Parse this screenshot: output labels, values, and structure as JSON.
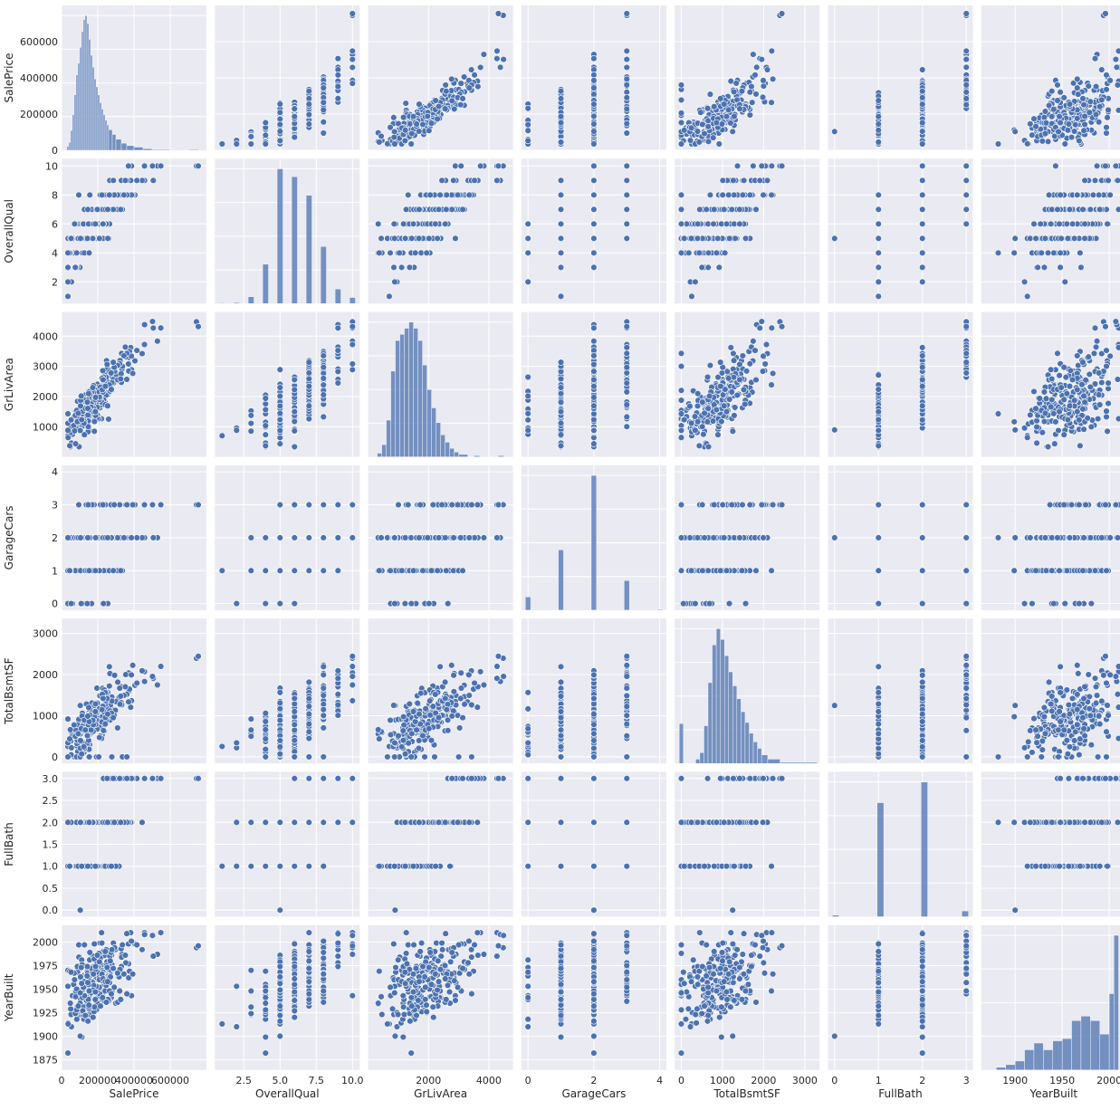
{
  "chart_data": {
    "type": "scatter",
    "kind": "pairplot",
    "background_color": "#eaeaf2",
    "grid_color": "#ffffff",
    "marker_color": "#4c72b0",
    "grid": true,
    "variables": [
      "SalePrice",
      "OverallQual",
      "GrLivArea",
      "GarageCars",
      "TotalBsmtSF",
      "FullBath",
      "YearBuilt"
    ],
    "axes": {
      "SalePrice": {
        "range": [
          0,
          800000
        ],
        "ticks": [
          0,
          200000,
          400000,
          600000
        ],
        "tick_labels": [
          "0",
          "200000",
          "400000",
          "600000"
        ]
      },
      "OverallQual": {
        "range": [
          0.5,
          10.5
        ],
        "ticks": [
          2,
          4,
          6,
          8,
          10
        ],
        "tick_labels": [
          "2",
          "4",
          "6",
          "8",
          "10"
        ],
        "x_ticks": [
          2.5,
          5.0,
          7.5,
          10.0
        ],
        "x_tick_labels": [
          "2.5",
          "5.0",
          "7.5",
          "10.0"
        ]
      },
      "GrLivArea": {
        "range": [
          0,
          4800
        ],
        "ticks": [
          1000,
          2000,
          3000,
          4000
        ],
        "tick_labels": [
          "1000",
          "2000",
          "3000",
          "4000"
        ],
        "x_ticks": [
          2000,
          4000
        ],
        "x_tick_labels": [
          "2000",
          "4000"
        ]
      },
      "GarageCars": {
        "range": [
          -0.2,
          4.2
        ],
        "ticks": [
          0,
          1,
          2,
          3,
          4
        ],
        "tick_labels": [
          "0",
          "1",
          "2",
          "3",
          "4"
        ],
        "x_ticks": [
          0,
          2,
          4
        ],
        "x_tick_labels": [
          "0",
          "2",
          "4"
        ]
      },
      "TotalBsmtSF": {
        "range": [
          -160,
          3360
        ],
        "ticks": [
          0,
          1000,
          2000,
          3000
        ],
        "tick_labels": [
          "0",
          "1000",
          "2000",
          "3000"
        ]
      },
      "FullBath": {
        "range": [
          -0.15,
          3.15
        ],
        "ticks": [
          0.0,
          0.5,
          1.0,
          1.5,
          2.0,
          2.5,
          3.0
        ],
        "tick_labels": [
          "0.0",
          "0.5",
          "1.0",
          "1.5",
          "2.0",
          "2.5",
          "3.0"
        ],
        "x_ticks": [
          0,
          1,
          2,
          3
        ],
        "x_tick_labels": [
          "0",
          "1",
          "2",
          "3"
        ]
      },
      "YearBuilt": {
        "range": [
          1864,
          2018
        ],
        "ticks": [
          1875,
          1900,
          1925,
          1950,
          1975,
          2000
        ],
        "tick_labels": [
          "1875",
          "1900",
          "1925",
          "1950",
          "1975",
          "2000"
        ],
        "x_ticks": [
          1900,
          1950,
          2000
        ],
        "x_tick_labels": [
          "1900",
          "1950",
          "2000"
        ]
      }
    },
    "histograms": {
      "SalePrice": {
        "bins": [
          [
            30000,
            40000,
            5
          ],
          [
            40000,
            50000,
            10
          ],
          [
            50000,
            60000,
            25
          ],
          [
            60000,
            70000,
            45
          ],
          [
            70000,
            80000,
            70
          ],
          [
            80000,
            90000,
            95
          ],
          [
            90000,
            100000,
            110
          ],
          [
            100000,
            110000,
            130
          ],
          [
            110000,
            120000,
            150
          ],
          [
            120000,
            130000,
            165
          ],
          [
            130000,
            140000,
            170
          ],
          [
            140000,
            150000,
            160
          ],
          [
            150000,
            160000,
            140
          ],
          [
            160000,
            170000,
            120
          ],
          [
            170000,
            180000,
            105
          ],
          [
            180000,
            190000,
            90
          ],
          [
            190000,
            200000,
            80
          ],
          [
            200000,
            210000,
            70
          ],
          [
            210000,
            220000,
            60
          ],
          [
            220000,
            230000,
            52
          ],
          [
            230000,
            240000,
            45
          ],
          [
            240000,
            250000,
            38
          ],
          [
            250000,
            260000,
            32
          ],
          [
            260000,
            280000,
            26
          ],
          [
            280000,
            300000,
            20
          ],
          [
            300000,
            330000,
            14
          ],
          [
            330000,
            360000,
            9
          ],
          [
            360000,
            400000,
            6
          ],
          [
            400000,
            450000,
            4
          ],
          [
            450000,
            500000,
            2
          ],
          [
            500000,
            600000,
            1
          ],
          [
            700000,
            760000,
            1
          ]
        ],
        "max": 170
      },
      "OverallQual": {
        "bins": [
          [
            0.8,
            1.2,
            2
          ],
          [
            1.8,
            2.2,
            3
          ],
          [
            2.8,
            3.2,
            20
          ],
          [
            3.8,
            4.2,
            116
          ],
          [
            4.8,
            5.2,
            397
          ],
          [
            5.8,
            6.2,
            374
          ],
          [
            6.8,
            7.2,
            319
          ],
          [
            7.8,
            8.2,
            168
          ],
          [
            8.8,
            9.2,
            43
          ],
          [
            9.8,
            10.2,
            18
          ]
        ],
        "max": 397
      },
      "GrLivArea": {
        "bins": [
          [
            300,
            450,
            3
          ],
          [
            450,
            600,
            10
          ],
          [
            600,
            750,
            30
          ],
          [
            750,
            900,
            70
          ],
          [
            900,
            1050,
            95
          ],
          [
            1050,
            1200,
            100
          ],
          [
            1200,
            1350,
            105
          ],
          [
            1350,
            1500,
            110
          ],
          [
            1500,
            1650,
            105
          ],
          [
            1650,
            1800,
            95
          ],
          [
            1800,
            1950,
            75
          ],
          [
            1950,
            2100,
            55
          ],
          [
            2100,
            2250,
            40
          ],
          [
            2250,
            2400,
            28
          ],
          [
            2400,
            2550,
            18
          ],
          [
            2550,
            2700,
            12
          ],
          [
            2700,
            2850,
            7
          ],
          [
            2850,
            3000,
            4
          ],
          [
            3000,
            3300,
            2
          ],
          [
            3500,
            3700,
            1
          ],
          [
            4300,
            4500,
            1
          ]
        ],
        "max": 110
      },
      "GarageCars": {
        "bins": [
          [
            -0.08,
            0.08,
            81
          ],
          [
            0.92,
            1.08,
            369
          ],
          [
            1.92,
            2.08,
            824
          ],
          [
            2.92,
            3.08,
            181
          ],
          [
            3.92,
            4.08,
            5
          ]
        ],
        "max": 824
      },
      "TotalBsmtSF": {
        "bins": [
          [
            -50,
            50,
            37
          ],
          [
            350,
            450,
            4
          ],
          [
            450,
            550,
            10
          ],
          [
            550,
            650,
            35
          ],
          [
            650,
            750,
            75
          ],
          [
            750,
            850,
            110
          ],
          [
            850,
            950,
            125
          ],
          [
            950,
            1050,
            115
          ],
          [
            1050,
            1150,
            100
          ],
          [
            1150,
            1250,
            85
          ],
          [
            1250,
            1350,
            72
          ],
          [
            1350,
            1450,
            60
          ],
          [
            1450,
            1550,
            48
          ],
          [
            1550,
            1650,
            38
          ],
          [
            1650,
            1750,
            28
          ],
          [
            1750,
            1850,
            20
          ],
          [
            1850,
            1950,
            14
          ],
          [
            1950,
            2100,
            8
          ],
          [
            2100,
            2400,
            4
          ],
          [
            2400,
            3300,
            1
          ]
        ],
        "max": 125
      },
      "FullBath": {
        "bins": [
          [
            -0.05,
            0.1,
            9
          ],
          [
            0.97,
            1.12,
            650
          ],
          [
            1.97,
            2.12,
            768
          ],
          [
            2.9,
            3.05,
            33
          ]
        ],
        "max": 768
      },
      "YearBuilt": {
        "bins": [
          [
            1872,
            1880,
            1
          ],
          [
            1880,
            1890,
            6
          ],
          [
            1890,
            1900,
            12
          ],
          [
            1900,
            1910,
            20
          ],
          [
            1910,
            1920,
            45
          ],
          [
            1920,
            1930,
            60
          ],
          [
            1930,
            1940,
            45
          ],
          [
            1940,
            1950,
            65
          ],
          [
            1950,
            1960,
            70
          ],
          [
            1960,
            1970,
            110
          ],
          [
            1970,
            1980,
            120
          ],
          [
            1980,
            1990,
            110
          ],
          [
            1990,
            2000,
            80
          ],
          [
            2000,
            2005,
            170
          ],
          [
            2005,
            2010,
            300
          ]
        ],
        "max": 300
      }
    },
    "scatter_pairs": "each off-diagonal panel plots the row variable (y) against the column variable (x); points are generated deterministically from the axes ranges and discrete levels shown"
  }
}
